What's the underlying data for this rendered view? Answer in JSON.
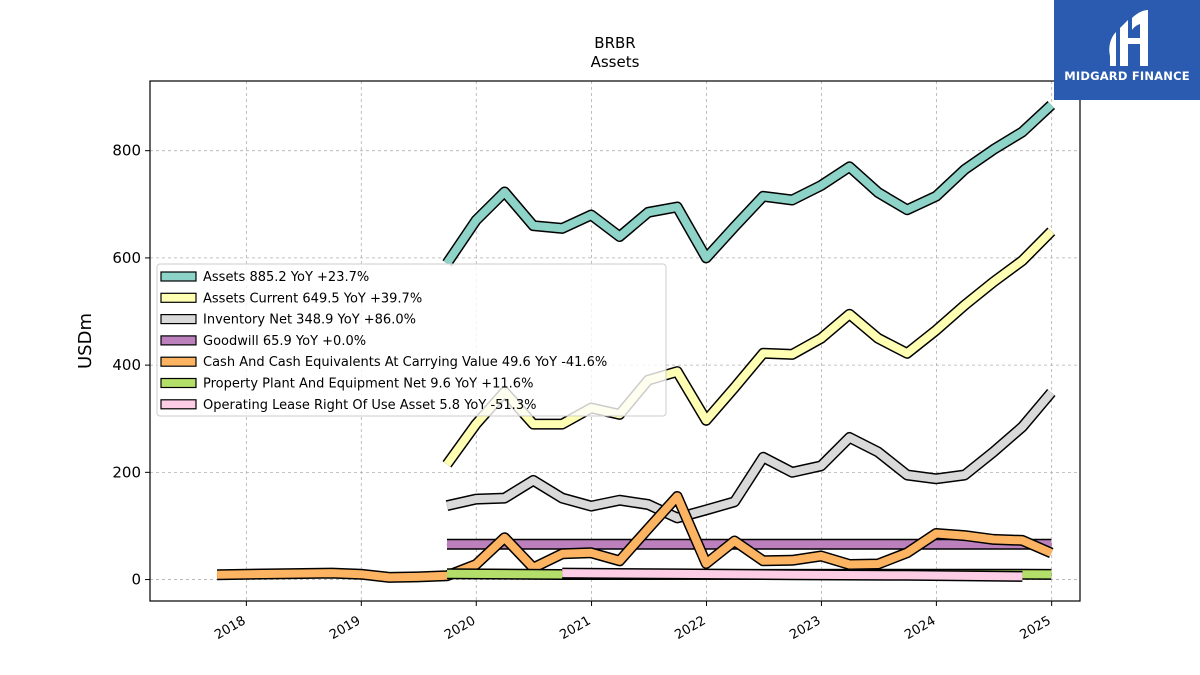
{
  "brand": {
    "name": "MIDGARD FINANCE",
    "color": "#2a5bb1"
  },
  "chart_data": {
    "type": "line",
    "title": "BRBR",
    "subtitle": "Assets",
    "xlabel": "",
    "ylabel": "USDm",
    "xlim": [
      "2017-03-01",
      "2025-04-01"
    ],
    "ylim": [
      -40,
      930
    ],
    "x_ticks": [
      "2018",
      "2019",
      "2020",
      "2021",
      "2022",
      "2023",
      "2024",
      "2025"
    ],
    "y_ticks": [
      0,
      200,
      400,
      600,
      800
    ],
    "grid": true,
    "legend_position": "center-left",
    "series": [
      {
        "name": "Assets  885.2 YoY +23.7%",
        "color": "#8dd3c7",
        "points": [
          [
            "2019-09-30",
            590
          ],
          [
            "2019-12-31",
            670
          ],
          [
            "2020-03-31",
            723
          ],
          [
            "2020-06-30",
            660
          ],
          [
            "2020-09-30",
            655
          ],
          [
            "2020-12-31",
            680
          ],
          [
            "2021-03-31",
            640
          ],
          [
            "2021-06-30",
            685
          ],
          [
            "2021-09-30",
            695
          ],
          [
            "2021-12-31",
            600
          ],
          [
            "2022-03-31",
            658
          ],
          [
            "2022-06-30",
            715
          ],
          [
            "2022-09-30",
            708
          ],
          [
            "2022-12-31",
            735
          ],
          [
            "2023-03-31",
            770
          ],
          [
            "2023-06-30",
            722
          ],
          [
            "2023-09-30",
            690
          ],
          [
            "2023-12-31",
            715
          ],
          [
            "2024-03-31",
            765
          ],
          [
            "2024-06-30",
            802
          ],
          [
            "2024-09-30",
            835
          ],
          [
            "2024-12-31",
            885.2
          ]
        ]
      },
      {
        "name": "Assets Current  649.5 YoY +39.7%",
        "color": "#ffffb3",
        "points": [
          [
            "2019-09-30",
            215
          ],
          [
            "2019-12-31",
            290
          ],
          [
            "2020-03-31",
            350
          ],
          [
            "2020-06-30",
            290
          ],
          [
            "2020-09-30",
            290
          ],
          [
            "2020-12-31",
            320
          ],
          [
            "2021-03-31",
            308
          ],
          [
            "2021-06-30",
            372
          ],
          [
            "2021-09-30",
            388
          ],
          [
            "2021-12-31",
            297
          ],
          [
            "2022-03-31",
            358
          ],
          [
            "2022-06-30",
            422
          ],
          [
            "2022-09-30",
            420
          ],
          [
            "2022-12-31",
            450
          ],
          [
            "2023-03-31",
            495
          ],
          [
            "2023-06-30",
            450
          ],
          [
            "2023-09-30",
            422
          ],
          [
            "2023-12-31",
            465
          ],
          [
            "2024-03-31",
            512
          ],
          [
            "2024-06-30",
            555
          ],
          [
            "2024-09-30",
            595
          ],
          [
            "2024-12-31",
            649.5
          ]
        ]
      },
      {
        "name": "Inventory Net  348.9 YoY +86.0%",
        "color": "#d9d9d9",
        "points": [
          [
            "2019-09-30",
            138
          ],
          [
            "2019-12-31",
            150
          ],
          [
            "2020-03-31",
            152
          ],
          [
            "2020-06-30",
            185
          ],
          [
            "2020-09-30",
            152
          ],
          [
            "2020-12-31",
            137
          ],
          [
            "2021-03-31",
            148
          ],
          [
            "2021-06-30",
            140
          ],
          [
            "2021-09-30",
            115
          ],
          [
            "2021-12-31",
            130
          ],
          [
            "2022-03-31",
            145
          ],
          [
            "2022-06-30",
            228
          ],
          [
            "2022-09-30",
            200
          ],
          [
            "2022-12-31",
            212
          ],
          [
            "2023-03-31",
            265
          ],
          [
            "2023-06-30",
            238
          ],
          [
            "2023-09-30",
            195
          ],
          [
            "2023-12-31",
            188
          ],
          [
            "2024-03-31",
            195
          ],
          [
            "2024-06-30",
            238
          ],
          [
            "2024-09-30",
            285
          ],
          [
            "2024-12-31",
            348.9
          ]
        ]
      },
      {
        "name": "Goodwill  65.9 YoY +0.0%",
        "color": "#bc80bd",
        "points": [
          [
            "2019-09-30",
            65.9
          ],
          [
            "2024-12-31",
            65.9
          ]
        ]
      },
      {
        "name": "Cash And Cash Equivalents At Carrying Value  49.6 YoY -41.6%",
        "color": "#fdb462",
        "points": [
          [
            "2017-09-30",
            9
          ],
          [
            "2018-09-30",
            12
          ],
          [
            "2018-12-31",
            10
          ],
          [
            "2019-03-31",
            4
          ],
          [
            "2019-06-30",
            5
          ],
          [
            "2019-09-30",
            7
          ],
          [
            "2019-12-31",
            28
          ],
          [
            "2020-03-31",
            78
          ],
          [
            "2020-06-30",
            22
          ],
          [
            "2020-09-30",
            48
          ],
          [
            "2020-12-31",
            50
          ],
          [
            "2021-03-31",
            35
          ],
          [
            "2021-06-30",
            95
          ],
          [
            "2021-09-30",
            155
          ],
          [
            "2021-12-31",
            30
          ],
          [
            "2022-03-31",
            72
          ],
          [
            "2022-06-30",
            35
          ],
          [
            "2022-09-30",
            36
          ],
          [
            "2022-12-31",
            44
          ],
          [
            "2023-03-31",
            28
          ],
          [
            "2023-06-30",
            29
          ],
          [
            "2023-09-30",
            50
          ],
          [
            "2023-12-31",
            86
          ],
          [
            "2024-03-31",
            82
          ],
          [
            "2024-06-30",
            75
          ],
          [
            "2024-09-30",
            73
          ],
          [
            "2024-12-31",
            49.6
          ]
        ]
      },
      {
        "name": "Property Plant And Equipment Net  9.6 YoY +11.6%",
        "color": "#b3de69",
        "points": [
          [
            "2019-09-30",
            11
          ],
          [
            "2020-09-30",
            9.5
          ],
          [
            "2024-09-30",
            10
          ],
          [
            "2024-12-31",
            9.6
          ]
        ]
      },
      {
        "name": "Operating Lease Right Of Use Asset  5.8 YoY -51.3%",
        "color": "#fccde5",
        "points": [
          [
            "2020-09-30",
            12
          ],
          [
            "2021-09-30",
            10.5
          ],
          [
            "2022-09-30",
            9
          ],
          [
            "2023-09-30",
            8
          ],
          [
            "2024-09-30",
            5.8
          ]
        ]
      }
    ]
  }
}
